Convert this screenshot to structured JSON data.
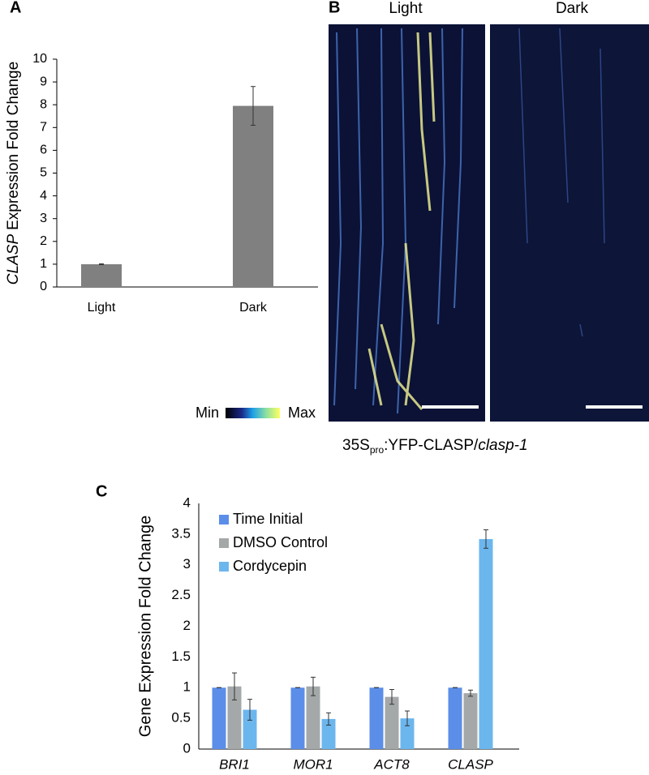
{
  "chart_data": [
    {
      "type": "bar",
      "label": "A",
      "ylabel_italic": "CLASP",
      "ylabel_rest": "Expression Fold Change",
      "categories": [
        "Light",
        "Dark"
      ],
      "values": [
        1.0,
        7.95
      ],
      "errors": [
        0.02,
        0.85
      ],
      "color": "#808080",
      "ylim": [
        0,
        10
      ],
      "yticks": [
        0,
        1,
        2,
        3,
        4,
        5,
        6,
        7,
        8,
        9,
        10
      ],
      "grid": false
    },
    {
      "type": "bar",
      "label": "C",
      "ylabel": "Gene Expression Fold Change",
      "categories": [
        "BRI1",
        "MOR1",
        "ACT8",
        "CLASP"
      ],
      "category_style": "italic",
      "series": [
        {
          "name": "Time Initial",
          "color": "#5b8ee8",
          "values": [
            1,
            1,
            1,
            1
          ],
          "errors": [
            0,
            0,
            0,
            0
          ]
        },
        {
          "name": "DMSO Control",
          "color": "#a5a8a8",
          "values": [
            1.02,
            1.02,
            0.85,
            0.91
          ],
          "errors": [
            0.22,
            0.15,
            0.12,
            0.05
          ]
        },
        {
          "name": "Cordycepin",
          "color": "#6cb6ee",
          "values": [
            0.64,
            0.49,
            0.5,
            3.42
          ],
          "errors": [
            0.17,
            0.1,
            0.12,
            0.15
          ]
        }
      ],
      "ylim": [
        0,
        4
      ],
      "yticks": [
        0,
        0.5,
        1,
        1.5,
        2,
        2.5,
        3,
        3.5,
        4
      ],
      "grid": false,
      "legend": "top-left"
    }
  ],
  "image_panel": {
    "label": "B",
    "columns": [
      "Light",
      "Dark"
    ],
    "colorbar": {
      "min": "Min",
      "max": "Max"
    },
    "caption": {
      "prefix": "35S",
      "subscript": "pro",
      "middle": ":YFP-CLASP/",
      "italic": "clasp-1"
    }
  }
}
